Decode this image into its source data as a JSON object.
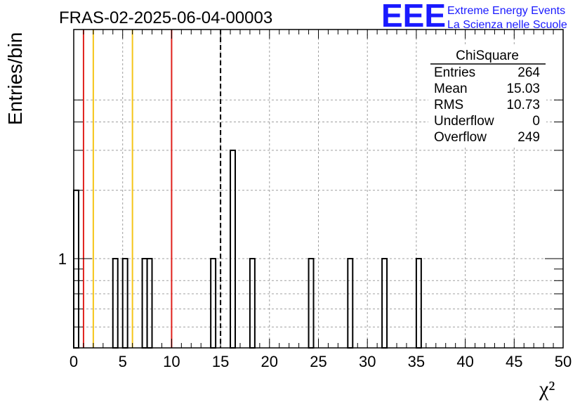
{
  "chart_data": {
    "type": "bar",
    "title": "FRAS-02-2025-06-04-00003",
    "xlabel": "χ²",
    "ylabel": "Entries/bin",
    "xlim": [
      0,
      50
    ],
    "ylog": true,
    "y_tick_labels": [
      {
        "value": 1,
        "label": "1"
      }
    ],
    "x_tick_labels": [
      "0",
      "5",
      "10",
      "15",
      "20",
      "25",
      "30",
      "35",
      "40",
      "45",
      "50"
    ],
    "bin_width": 0.5,
    "bins": [
      {
        "x": 0.0,
        "value": 2
      },
      {
        "x": 4.0,
        "value": 1
      },
      {
        "x": 5.0,
        "value": 1
      },
      {
        "x": 7.0,
        "value": 1
      },
      {
        "x": 7.5,
        "value": 1
      },
      {
        "x": 14.0,
        "value": 1
      },
      {
        "x": 16.0,
        "value": 3
      },
      {
        "x": 18.0,
        "value": 1
      },
      {
        "x": 24.0,
        "value": 1
      },
      {
        "x": 28.0,
        "value": 1
      },
      {
        "x": 31.5,
        "value": 1
      },
      {
        "x": 35.0,
        "value": 1
      }
    ],
    "grid": true,
    "reference_lines": [
      {
        "x": 1,
        "color": "#e0201c",
        "style": "solid"
      },
      {
        "x": 2,
        "color": "#f5c518",
        "style": "solid"
      },
      {
        "x": 6,
        "color": "#f5c518",
        "style": "solid"
      },
      {
        "x": 10,
        "color": "#e0201c",
        "style": "solid"
      },
      {
        "x": 15,
        "color": "#000000",
        "style": "dashed"
      }
    ],
    "stats_box": {
      "placement": "top-right",
      "title": "ChiSquare",
      "rows": [
        {
          "label": "Entries",
          "value": "264"
        },
        {
          "label": "Mean",
          "value": "15.03"
        },
        {
          "label": "RMS",
          "value": "10.73"
        },
        {
          "label": "Underflow",
          "value": "0"
        },
        {
          "label": "Overflow",
          "value": "249"
        }
      ]
    }
  },
  "logo": {
    "mark": "EEE",
    "line1": "Extreme Energy Events",
    "line2": "La Scienza nelle Scuole",
    "color": "#1a1aff"
  }
}
